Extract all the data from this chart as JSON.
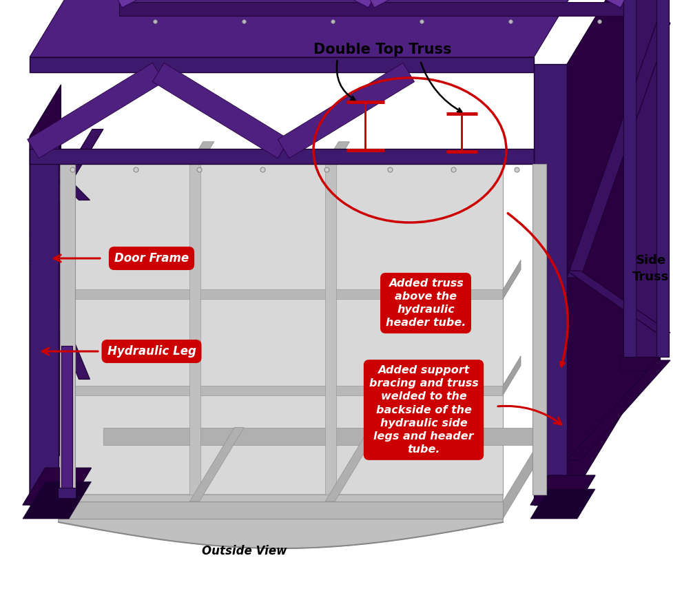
{
  "bg": "#ffffff",
  "purple_dark": "#3d1a6e",
  "purple_mid": "#4e2080",
  "purple_light": "#6a35a0",
  "gray_panel": "#c8c8c8",
  "gray_light": "#dedede",
  "gray_dark": "#a8a8a8",
  "gray_frame": "#b0b0b0",
  "red": "#cc0000",
  "black": "#000000",
  "white": "#ffffff",
  "label_double_top_truss": "Double Top Truss",
  "label_side_truss": "Side\nTruss",
  "label_outside_view": "Outside View",
  "box_door_frame_text": "Door Frame",
  "box_hydraulic_leg_text": "Hydraulic Leg",
  "box_added_truss_text": "Added truss\nabove the\nhydraulic\nheader tube.",
  "box_added_support_text": "Added support\nbracing and truss\nwelded to the\nbackside of the\nhydraulic side\nlegs and header\ntube."
}
